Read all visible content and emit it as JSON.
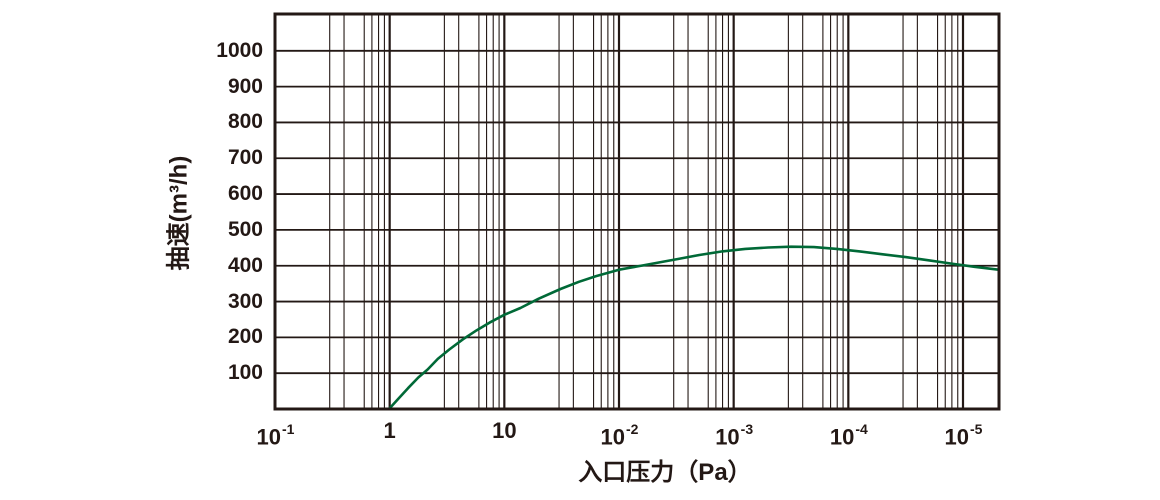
{
  "page": {
    "background": "#ffffff"
  },
  "chart_data": {
    "type": "line",
    "title": "",
    "xlabel": "入口压力（Pa）",
    "ylabel": "抽速(m³/h)",
    "x_axis": {
      "scale": "log-decades-as-printed",
      "tick_labels": [
        {
          "base": "10",
          "exp": "-1"
        },
        {
          "base": "1",
          "exp": ""
        },
        {
          "base": "10",
          "exp": ""
        },
        {
          "base": "10",
          "exp": "-2"
        },
        {
          "base": "10",
          "exp": "-3"
        },
        {
          "base": "10",
          "exp": "-4"
        },
        {
          "base": "10",
          "exp": "-5"
        }
      ],
      "tick_labels_plain": [
        "10^-1",
        "1",
        "10",
        "10^-2",
        "10^-3",
        "10^-4",
        "10^-5"
      ],
      "minor_tick_multiples": [
        3,
        4,
        6,
        7,
        8,
        9
      ],
      "decades_span": [
        0,
        6.31
      ]
    },
    "y_axis": {
      "tick_labels": [
        "100",
        "200",
        "300",
        "400",
        "500",
        "600",
        "700",
        "800",
        "900",
        "1000"
      ],
      "tick_step": 100,
      "ylim": [
        0,
        1100
      ],
      "unit": "m³/h"
    },
    "grid": "both",
    "legend": "none",
    "colors": {
      "ink": "#231815",
      "curve": "#006937"
    },
    "series": [
      {
        "name": "pumping-speed-curve",
        "color": "#006937",
        "points_decade_value": [
          [
            1.0,
            2
          ],
          [
            1.08,
            30
          ],
          [
            1.16,
            58
          ],
          [
            1.25,
            88
          ],
          [
            1.33,
            110
          ],
          [
            1.42,
            140
          ],
          [
            1.52,
            166
          ],
          [
            1.64,
            195
          ],
          [
            1.76,
            220
          ],
          [
            1.87,
            241
          ],
          [
            2.0,
            263
          ],
          [
            2.14,
            282
          ],
          [
            2.3,
            308
          ],
          [
            2.49,
            335
          ],
          [
            2.65,
            355
          ],
          [
            2.8,
            371
          ],
          [
            3.0,
            389
          ],
          [
            3.21,
            401
          ],
          [
            3.4,
            412
          ],
          [
            3.52,
            419
          ],
          [
            3.7,
            430
          ],
          [
            3.9,
            440
          ],
          [
            4.1,
            447
          ],
          [
            4.3,
            451
          ],
          [
            4.5,
            453
          ],
          [
            4.7,
            452
          ],
          [
            4.9,
            447
          ],
          [
            5.1,
            440
          ],
          [
            5.3,
            432
          ],
          [
            5.5,
            424
          ],
          [
            5.7,
            415
          ],
          [
            5.9,
            406
          ],
          [
            6.1,
            397
          ],
          [
            6.31,
            389
          ]
        ]
      }
    ]
  }
}
